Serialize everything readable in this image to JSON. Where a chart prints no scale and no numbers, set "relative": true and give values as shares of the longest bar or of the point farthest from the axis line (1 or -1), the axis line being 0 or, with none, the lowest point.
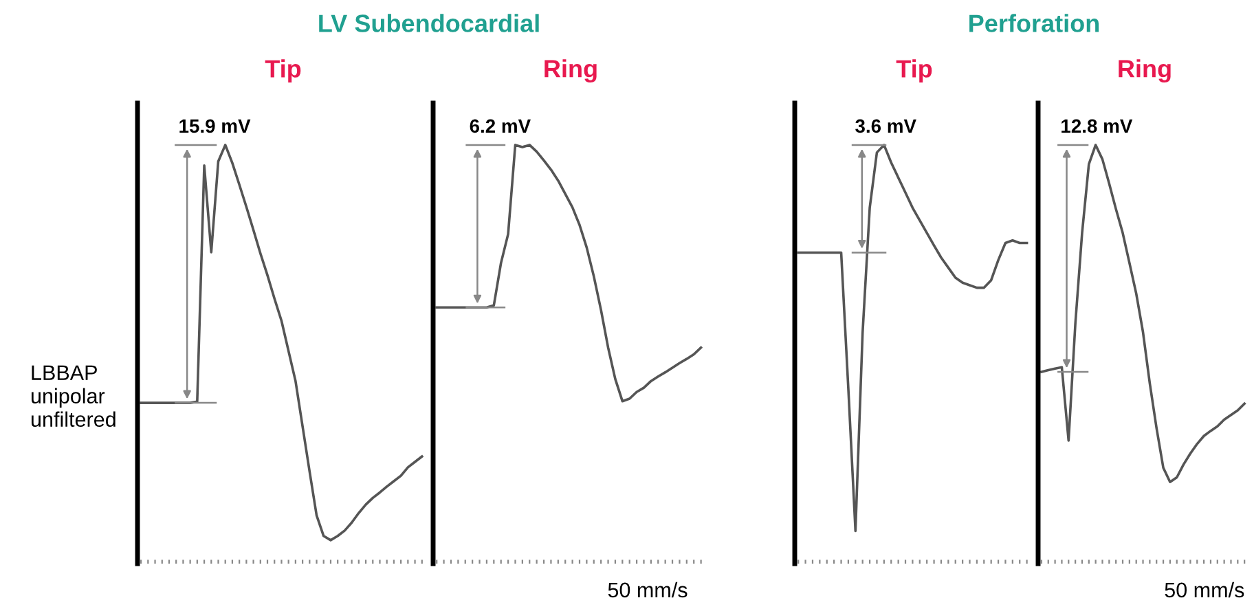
{
  "chart_data": [
    {
      "type": "line",
      "relative": true,
      "title": "LV Subendocardial",
      "subtitle": "Tip",
      "ylabel": "LBBAP\nunipolar\nunfiltered",
      "categories": [
        null,
        null,
        null,
        null,
        null,
        null,
        null,
        null,
        null,
        null,
        null,
        null,
        null,
        null,
        null,
        null,
        null,
        null,
        null,
        null,
        null,
        null,
        null,
        null,
        null,
        null,
        null,
        null,
        null,
        null,
        null,
        null,
        null,
        null,
        null,
        null,
        null,
        null,
        null,
        null,
        null
      ],
      "series": [
        {
          "color": "#555555",
          "values": [
            0.384,
            0.384,
            0.384,
            0.384,
            0.384,
            0.384,
            0.384,
            0.384,
            0.387,
            0.951,
            0.744,
            0.961,
            1,
            0.957,
            0.905,
            0.852,
            0.797,
            0.741,
            0.689,
            0.633,
            0.58,
            0.508,
            0.436,
            0.328,
            0.22,
            0.115,
            0.066,
            0.056,
            0.066,
            0.079,
            0.098,
            0.121,
            0.141,
            0.157,
            0.17,
            0.184,
            0.197,
            0.21,
            0.23,
            0.243,
            0.256
          ]
        }
      ],
      "annotations": [
        "15.9 mV"
      ],
      "legend": false,
      "grid": false
    },
    {
      "type": "line",
      "relative": true,
      "subtitle": "Ring",
      "xlabel": "50 mm/s",
      "categories": [
        null,
        null,
        null,
        null,
        null,
        null,
        null,
        null,
        null,
        null,
        null,
        null,
        null,
        null,
        null,
        null,
        null,
        null,
        null,
        null,
        null,
        null,
        null,
        null,
        null,
        null,
        null,
        null,
        null,
        null,
        null,
        null,
        null,
        null,
        null,
        null,
        null,
        null
      ],
      "series": [
        {
          "color": "#555555",
          "values": [
            0.612,
            0.612,
            0.612,
            0.612,
            0.612,
            0.612,
            0.612,
            0.612,
            0.617,
            0.718,
            0.787,
            1,
            0.995,
            1,
            0.984,
            0.963,
            0.941,
            0.915,
            0.883,
            0.851,
            0.809,
            0.755,
            0.686,
            0.606,
            0.516,
            0.441,
            0.388,
            0.394,
            0.41,
            0.42,
            0.436,
            0.447,
            0.457,
            0.468,
            0.479,
            0.489,
            0.5,
            0.516
          ]
        }
      ],
      "annotations": [
        "6.2 mV"
      ],
      "legend": false,
      "grid": false
    },
    {
      "type": "line",
      "relative": true,
      "title": "Perforation",
      "subtitle": "Tip",
      "categories": [
        null,
        null,
        null,
        null,
        null,
        null,
        null,
        null,
        null,
        null,
        null,
        null,
        null,
        null,
        null,
        null,
        null,
        null,
        null,
        null,
        null,
        null,
        null,
        null,
        null,
        null,
        null,
        null,
        null,
        null,
        null,
        null,
        null
      ],
      "series": [
        {
          "color": "#555555",
          "values": [
            0.743,
            0.743,
            0.743,
            0.743,
            0.743,
            0.743,
            0.743,
            0.419,
            0.078,
            0.551,
            0.85,
            0.982,
            1,
            0.958,
            0.922,
            0.886,
            0.85,
            0.82,
            0.79,
            0.76,
            0.731,
            0.707,
            0.683,
            0.671,
            0.665,
            0.659,
            0.659,
            0.677,
            0.725,
            0.766,
            0.772,
            0.766,
            0.766
          ]
        }
      ],
      "annotations": [
        "3.6 mV"
      ],
      "legend": false,
      "grid": false
    },
    {
      "type": "line",
      "relative": true,
      "subtitle": "Ring",
      "xlabel": "50 mm/s",
      "categories": [
        null,
        null,
        null,
        null,
        null,
        null,
        null,
        null,
        null,
        null,
        null,
        null,
        null,
        null,
        null,
        null,
        null,
        null,
        null,
        null,
        null,
        null,
        null,
        null,
        null,
        null,
        null,
        null,
        null,
        null,
        null
      ],
      "series": [
        {
          "color": "#555555",
          "values": [
            0.458,
            0.462,
            0.466,
            0.469,
            0.294,
            0.573,
            0.79,
            0.954,
            1,
            0.966,
            0.908,
            0.847,
            0.79,
            0.718,
            0.645,
            0.553,
            0.431,
            0.324,
            0.229,
            0.195,
            0.206,
            0.237,
            0.263,
            0.286,
            0.305,
            0.317,
            0.328,
            0.344,
            0.355,
            0.366,
            0.382
          ]
        }
      ],
      "annotations": [
        "12.8 mV"
      ],
      "legend": false,
      "grid": false
    }
  ]
}
